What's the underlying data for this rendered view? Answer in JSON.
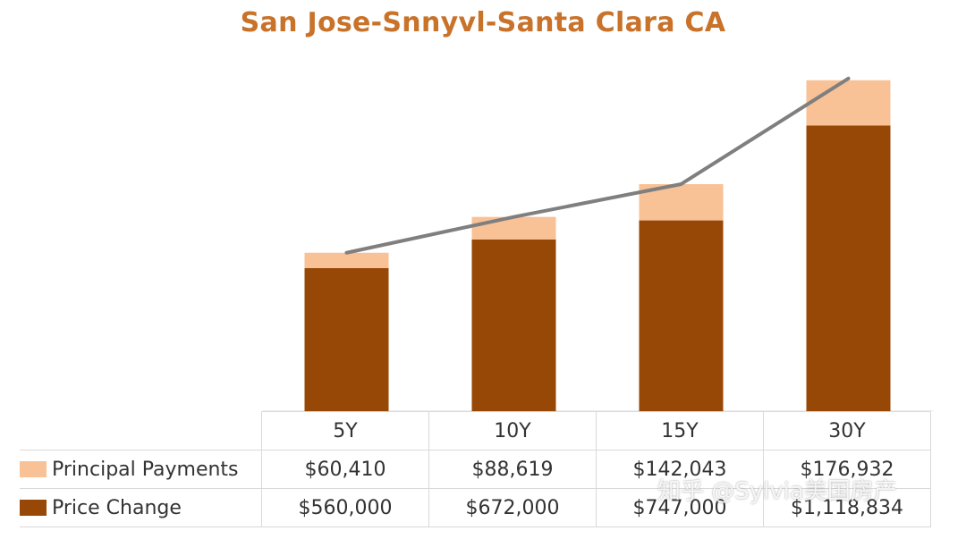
{
  "chart_data": {
    "type": "bar",
    "stacked": true,
    "title": "San Jose-Snnyvl-Santa Clara  CA",
    "categories": [
      "5Y",
      "10Y",
      "15Y",
      "30Y"
    ],
    "series": [
      {
        "name": "Principal Payments",
        "values": [
          60410,
          88619,
          142043,
          176932
        ],
        "display": [
          "$60,410",
          "$88,619",
          "$142,043",
          "$176,932"
        ],
        "color": "#f8c196"
      },
      {
        "name": "Price Change",
        "values": [
          560000,
          672000,
          747000,
          1118834
        ],
        "display": [
          "$560,000",
          "$672,000",
          "$747,000",
          "$1,118,834"
        ],
        "color": "#974706"
      }
    ],
    "line_color": "#7f7f7f",
    "ylim": [
      0,
      1400000
    ],
    "grid": false,
    "legend": "table-bottom-left"
  },
  "watermark": "知乎 @Sylvia美国房产"
}
